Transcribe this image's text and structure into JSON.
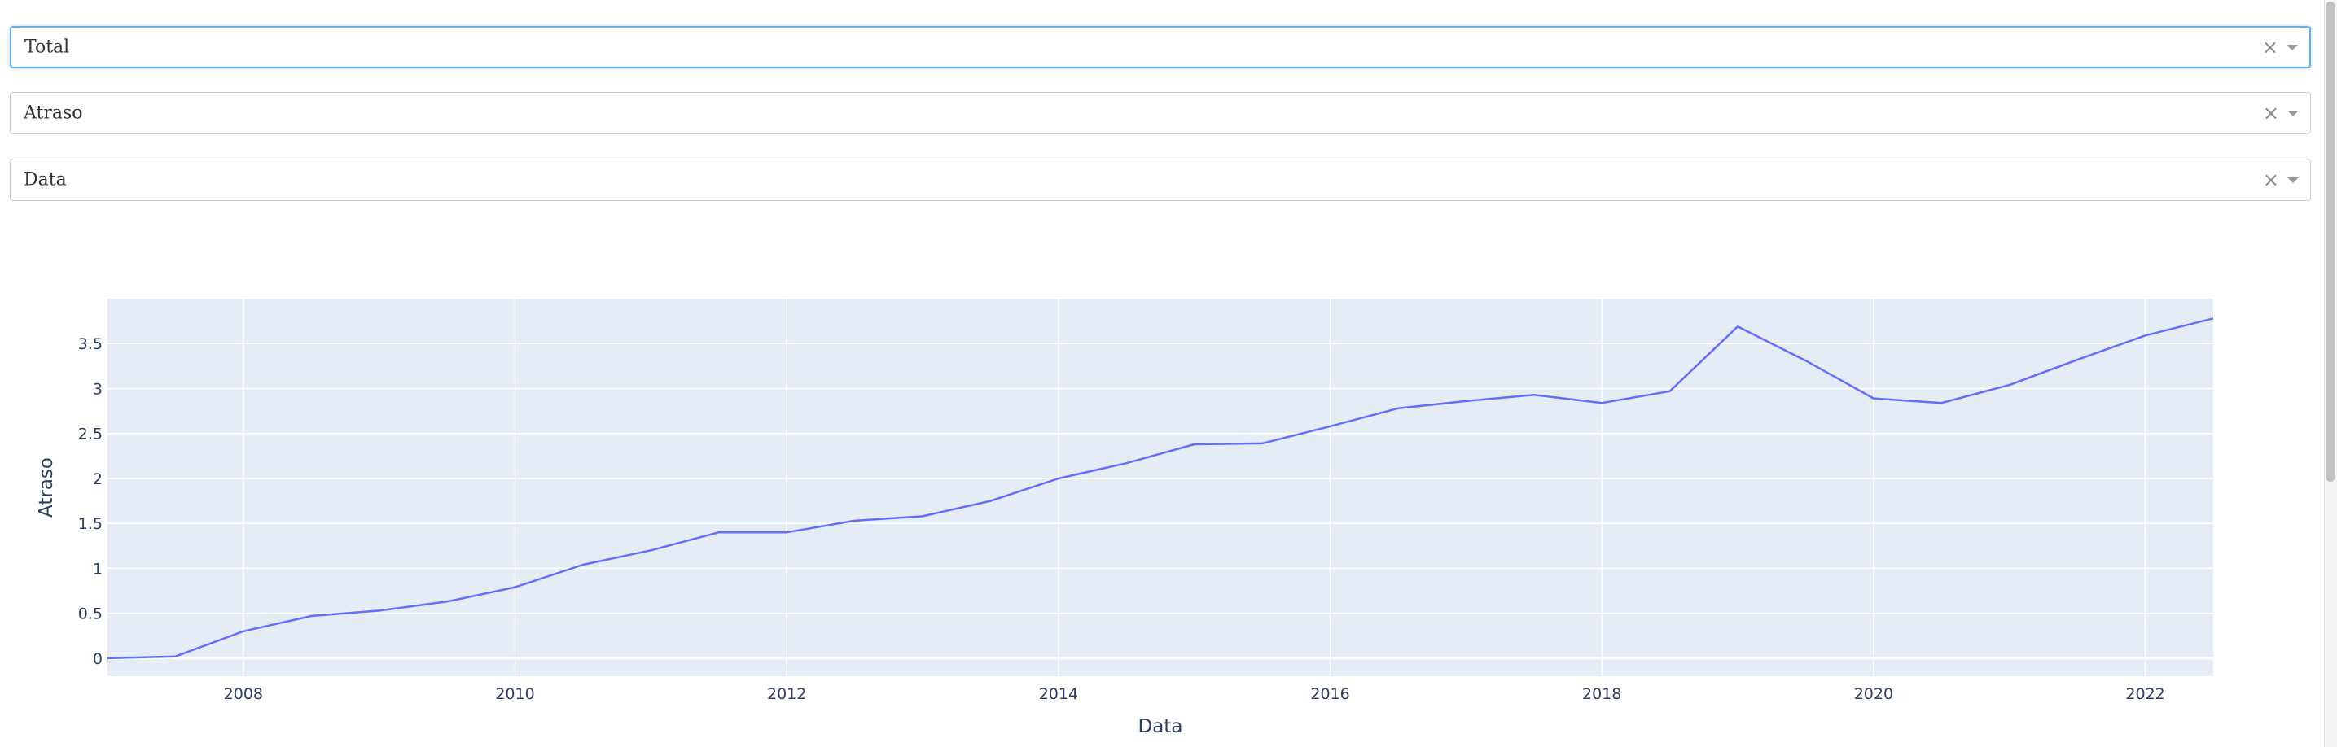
{
  "dropdowns": [
    {
      "value": "Total",
      "clear_glyph": "×",
      "arrow_icon": "caret-down-icon"
    },
    {
      "value": "Atraso",
      "clear_glyph": "×",
      "arrow_icon": "caret-down-icon"
    },
    {
      "value": "Data",
      "clear_glyph": "×",
      "arrow_icon": "caret-down-icon"
    }
  ],
  "chart_data": {
    "type": "line",
    "xlabel": "Data",
    "ylabel": "Atraso",
    "x": [
      2007.0,
      2007.5,
      2008.0,
      2008.5,
      2009.0,
      2009.5,
      2010.0,
      2010.5,
      2011.0,
      2011.5,
      2012.0,
      2012.5,
      2013.0,
      2013.5,
      2014.0,
      2014.5,
      2015.0,
      2015.5,
      2016.0,
      2016.5,
      2017.0,
      2017.5,
      2018.0,
      2018.5,
      2019.0,
      2019.5,
      2020.0,
      2020.5,
      2021.0,
      2021.5,
      2022.0,
      2022.5
    ],
    "y": [
      0.0,
      0.02,
      0.3,
      0.47,
      0.53,
      0.63,
      0.79,
      1.04,
      1.2,
      1.4,
      1.4,
      1.53,
      1.58,
      1.75,
      2.0,
      2.17,
      2.38,
      2.39,
      2.58,
      2.78,
      2.86,
      2.93,
      2.84,
      2.97,
      3.69,
      3.31,
      2.89,
      2.84,
      3.04,
      3.32,
      3.59,
      3.78
    ],
    "xlim": [
      2007.0,
      2022.5
    ],
    "ylim": [
      -0.2,
      4.0
    ],
    "xticks": [
      2008,
      2010,
      2012,
      2014,
      2016,
      2018,
      2020,
      2022
    ],
    "xtick_labels": [
      "2008",
      "2010",
      "2012",
      "2014",
      "2016",
      "2018",
      "2020",
      "2022"
    ],
    "yticks": [
      0,
      0.5,
      1,
      1.5,
      2,
      2.5,
      3,
      3.5
    ],
    "ytick_labels": [
      "0",
      "0.5",
      "1",
      "1.5",
      "2",
      "2.5",
      "3",
      "3.5"
    ],
    "grid": true,
    "colors": {
      "line": "#636efa",
      "plot_bg": "#e5ecf6",
      "grid": "#ffffff",
      "text": "#2a3f5f"
    }
  }
}
